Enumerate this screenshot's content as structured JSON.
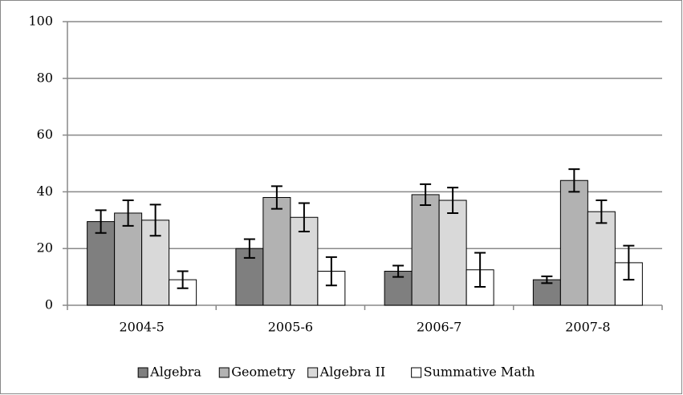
{
  "chart_data": {
    "type": "bar",
    "categories": [
      "2004-5",
      "2005-6",
      "2006-7",
      "2007-8"
    ],
    "series": [
      {
        "name": "Algebra",
        "color": "#7f7f7f",
        "values": [
          29.5,
          20,
          12,
          9
        ],
        "errors": [
          4,
          3.3,
          2,
          1.2
        ]
      },
      {
        "name": "Geometry",
        "color": "#b2b2b2",
        "values": [
          32.5,
          38,
          39,
          44
        ],
        "errors": [
          4.5,
          4,
          3.7,
          4
        ]
      },
      {
        "name": "Algebra II",
        "color": "#d9d9d9",
        "values": [
          30,
          31,
          37,
          33
        ],
        "errors": [
          5.5,
          5,
          4.5,
          4
        ]
      },
      {
        "name": "Summative Math",
        "color": "#ffffff",
        "values": [
          9,
          12,
          12.5,
          15
        ],
        "errors": [
          3,
          5,
          6,
          6
        ]
      }
    ],
    "ylim": [
      0,
      100
    ],
    "yticks": [
      0,
      20,
      40,
      60,
      80,
      100
    ],
    "grid": true,
    "legend": "bottom"
  }
}
